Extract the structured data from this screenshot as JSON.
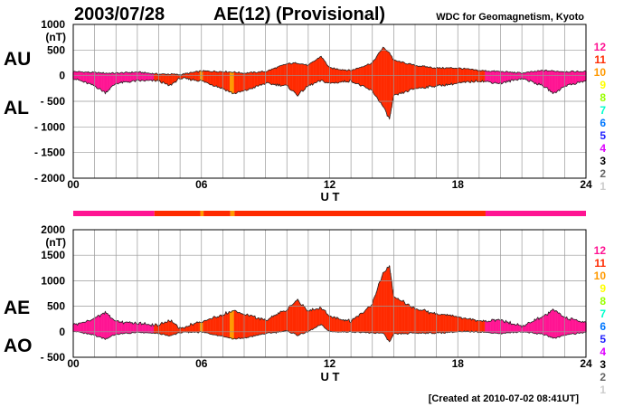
{
  "header": {
    "date": "2003/07/28",
    "title": "AE(12) (Provisional)",
    "source": "WDC for Geomagnetism, Kyoto"
  },
  "footer": {
    "created": "[Created at 2010-07-02 08:41UT]"
  },
  "colors": {
    "12": "#ff1493",
    "11": "#ff2a00",
    "10": "#ff9900",
    "9": "#ffff00",
    "8": "#99ff00",
    "7": "#00ffcc",
    "6": "#0077ff",
    "5": "#2222ff",
    "4": "#dd00ff",
    "3": "#000000",
    "2": "#666666",
    "1": "#cccccc"
  },
  "station_legend": [
    "12",
    "11",
    "10",
    "9",
    "8",
    "7",
    "6",
    "5",
    "4",
    "3",
    "2",
    "1"
  ],
  "chart_data": [
    {
      "type": "area",
      "title": "AU / AL",
      "labels": [
        "AU",
        "AL"
      ],
      "unit": "(nT)",
      "xlabel": "U T",
      "ylim": [
        -2000,
        1000
      ],
      "yticks": [
        "1000",
        "500",
        "0",
        "- 500",
        "- 1000",
        "- 1500",
        "- 2000"
      ],
      "ytick_values": [
        1000,
        500,
        0,
        -500,
        -1000,
        -1500,
        -2000
      ],
      "xticks": [
        "00",
        "06",
        "12",
        "18",
        "24"
      ],
      "xlim": [
        0,
        24
      ],
      "grid": true
    },
    {
      "type": "area",
      "title": "AE / AO",
      "labels": [
        "AE",
        "AO"
      ],
      "unit": "(nT)",
      "xlabel": "U T",
      "ylim": [
        -500,
        2000
      ],
      "yticks": [
        "2000",
        "1500",
        "1000",
        "500",
        "0",
        "- 500"
      ],
      "ytick_values": [
        2000,
        1500,
        1000,
        500,
        0,
        -500
      ],
      "xticks": [
        "00",
        "06",
        "12",
        "18",
        "24"
      ],
      "xlim": [
        0,
        24
      ],
      "grid": true
    }
  ],
  "series": {
    "hours": [
      0,
      1,
      1.5,
      2,
      3,
      4,
      4.5,
      5,
      6,
      7,
      7.5,
      8,
      9,
      10,
      10.5,
      11,
      11.6,
      12,
      13,
      14,
      14.5,
      14.8,
      15,
      16,
      17,
      18,
      19,
      20,
      21,
      22,
      22.5,
      23,
      24
    ],
    "AU": [
      80,
      60,
      50,
      50,
      70,
      30,
      30,
      20,
      90,
      80,
      70,
      50,
      80,
      230,
      250,
      200,
      380,
      150,
      100,
      250,
      550,
      450,
      300,
      200,
      150,
      150,
      100,
      80,
      50,
      100,
      90,
      80,
      80
    ],
    "AL": [
      -50,
      -200,
      -330,
      -150,
      -100,
      -100,
      -200,
      -50,
      -100,
      -250,
      -350,
      -300,
      -150,
      -200,
      -380,
      -200,
      -100,
      -150,
      -100,
      -300,
      -600,
      -850,
      -400,
      -250,
      -200,
      -150,
      -100,
      -150,
      -50,
      -200,
      -350,
      -200,
      -100
    ]
  },
  "station_segments": [
    {
      "from": 0,
      "to": 3.8,
      "count": "12"
    },
    {
      "from": 3.8,
      "to": 5.95,
      "count": "11"
    },
    {
      "from": 5.95,
      "to": 6.1,
      "count": "10"
    },
    {
      "from": 6.1,
      "to": 7.35,
      "count": "11"
    },
    {
      "from": 7.35,
      "to": 7.55,
      "count": "10"
    },
    {
      "from": 7.55,
      "to": 19.3,
      "count": "11"
    },
    {
      "from": 19.3,
      "to": 24,
      "count": "12"
    }
  ]
}
